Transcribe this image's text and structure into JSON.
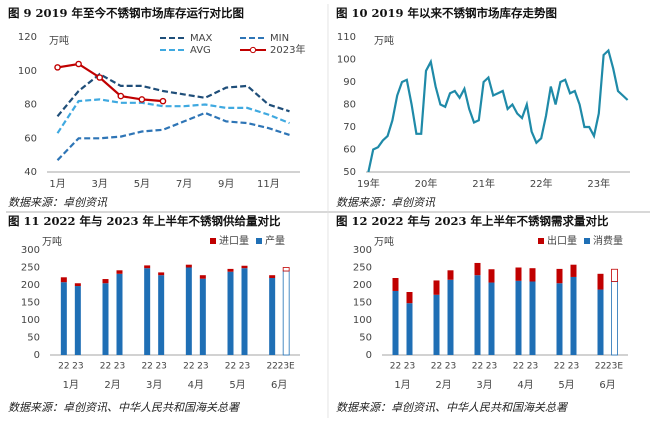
{
  "chart_data": [
    {
      "type": "line",
      "title": "图 9 2019 年至今不锈钢市场库存运行对比图",
      "y_unit": "万吨",
      "source": "数据来源：卓创资讯",
      "categories": [
        "1月",
        null,
        "3月",
        null,
        "5月",
        null,
        "7月",
        null,
        "9月",
        null,
        "11月",
        null
      ],
      "ylim": [
        40,
        120
      ],
      "yticks": [
        40,
        60,
        80,
        100,
        120
      ],
      "legend": "top-right",
      "series": [
        {
          "name": "MAX",
          "color": "#1f4e79",
          "line_style": "dashed",
          "markers": false,
          "values": [
            73,
            88,
            98,
            91,
            91,
            88,
            86,
            84,
            90,
            91,
            80,
            76
          ]
        },
        {
          "name": "MIN",
          "color": "#2e75b6",
          "line_style": "dashed",
          "markers": false,
          "values": [
            47,
            60,
            60,
            61,
            64,
            65,
            70,
            75,
            70,
            69,
            66,
            62
          ]
        },
        {
          "name": "AVG",
          "color": "#3fa9e0",
          "line_style": "dashed",
          "markers": false,
          "values": [
            63,
            82,
            83,
            81,
            81,
            79,
            79,
            80,
            78,
            78,
            74,
            69
          ]
        },
        {
          "name": "2023年",
          "color": "#c00000",
          "line_style": "solid",
          "markers": true,
          "values": [
            102,
            104,
            96,
            85,
            83,
            82,
            null,
            null,
            null,
            null,
            null,
            null
          ]
        }
      ]
    },
    {
      "type": "line",
      "title": "图 10 2019 年以来不锈钢市场库存走势图",
      "y_unit": "万吨",
      "source": "数据来源：卓创资讯",
      "categories": [
        "19年",
        null,
        null,
        null,
        null,
        null,
        null,
        null,
        null,
        null,
        null,
        null,
        "20年",
        null,
        null,
        null,
        null,
        null,
        null,
        null,
        null,
        null,
        null,
        null,
        "21年",
        null,
        null,
        null,
        null,
        null,
        null,
        null,
        null,
        null,
        null,
        null,
        "22年",
        null,
        null,
        null,
        null,
        null,
        null,
        null,
        null,
        null,
        null,
        null,
        "23年",
        null,
        null,
        null,
        null,
        null,
        null
      ],
      "ylim": [
        50,
        110
      ],
      "yticks": [
        50,
        60,
        70,
        80,
        90,
        100,
        110
      ],
      "series": [
        {
          "name": "库存",
          "color": "#1f8aa8",
          "line_style": "solid",
          "markers": false,
          "values": [
            50,
            60,
            61,
            64,
            66,
            73,
            84,
            90,
            91,
            80,
            67,
            67,
            95,
            99,
            88,
            80,
            79,
            85,
            86,
            83,
            87,
            78,
            72,
            73,
            90,
            92,
            84,
            85,
            86,
            78,
            80,
            76,
            74,
            80,
            68,
            63,
            65,
            75,
            88,
            80,
            90,
            91,
            85,
            86,
            80,
            70,
            70,
            66,
            76,
            102,
            104,
            96,
            86,
            84,
            82
          ]
        }
      ]
    },
    {
      "type": "stacked_bar",
      "title": "图 11 2022 年与 2023 年上半年不锈钢供给量对比",
      "y_unit": "万吨",
      "source": "数据来源：卓创资讯、中华人民共和国海关总署",
      "categories": [
        "22",
        "23",
        "22",
        "23",
        "22",
        "23",
        "22",
        "23",
        "22",
        "23",
        "22",
        "23E"
      ],
      "groups": [
        "1月",
        "2月",
        "3月",
        "4月",
        "5月",
        "6月"
      ],
      "hollow": [
        false,
        false,
        false,
        false,
        false,
        false,
        false,
        false,
        false,
        false,
        false,
        true
      ],
      "ylim": [
        0,
        300
      ],
      "yticks": [
        0,
        50,
        100,
        150,
        200,
        250,
        300
      ],
      "series": [
        {
          "name": "产量",
          "color": "#1f6fb5",
          "values": [
            208,
            197,
            205,
            232,
            248,
            228,
            250,
            218,
            238,
            248,
            220,
            240
          ]
        },
        {
          "name": "进口量",
          "color": "#c00000",
          "values": [
            14,
            8,
            12,
            10,
            8,
            8,
            8,
            10,
            8,
            7,
            8,
            10
          ]
        }
      ]
    },
    {
      "type": "stacked_bar",
      "title": "图 12 2022 年与 2023 年上半年不锈钢需求量对比",
      "y_unit": "万吨",
      "source": "数据来源：卓创资讯、中华人民共和国海关总署",
      "categories": [
        "22",
        "23",
        "22",
        "23",
        "22",
        "23",
        "22",
        "23",
        "22",
        "23",
        "22",
        "23E"
      ],
      "groups": [
        "1月",
        "2月",
        "3月",
        "4月",
        "5月",
        "6月"
      ],
      "hollow": [
        false,
        false,
        false,
        false,
        false,
        false,
        false,
        false,
        false,
        false,
        false,
        true
      ],
      "ylim": [
        0,
        300
      ],
      "yticks": [
        0,
        50,
        100,
        150,
        200,
        250,
        300
      ],
      "series": [
        {
          "name": "消费量",
          "color": "#1f6fb5",
          "values": [
            183,
            148,
            172,
            215,
            228,
            207,
            212,
            210,
            205,
            223,
            187,
            210
          ]
        },
        {
          "name": "出口量",
          "color": "#c00000",
          "values": [
            37,
            32,
            41,
            27,
            35,
            38,
            38,
            38,
            41,
            35,
            45,
            35
          ]
        }
      ]
    }
  ]
}
